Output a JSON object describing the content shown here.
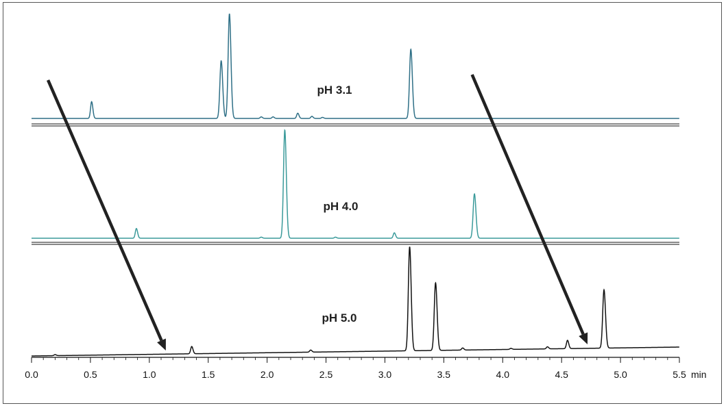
{
  "chart_data": {
    "type": "line",
    "title": "",
    "xlabel": "",
    "ylabel": "",
    "x_unit": "min",
    "xlim": [
      0.0,
      5.5
    ],
    "x_ticks": [
      "0.0",
      "0.5",
      "1.0",
      "1.5",
      "2.0",
      "2.5",
      "3.0",
      "3.5",
      "4.0",
      "4.5",
      "5.0",
      "5.5"
    ],
    "series": [
      {
        "name": "pH 3.1",
        "color": "#2e6f86",
        "peaks": [
          {
            "rt": 0.51,
            "height": 0.16
          },
          {
            "rt": 1.61,
            "height": 0.55
          },
          {
            "rt": 1.68,
            "height": 1.0
          },
          {
            "rt": 1.95,
            "height": 0.015
          },
          {
            "rt": 2.05,
            "height": 0.015
          },
          {
            "rt": 2.26,
            "height": 0.05
          },
          {
            "rt": 2.38,
            "height": 0.02
          },
          {
            "rt": 2.47,
            "height": 0.01
          },
          {
            "rt": 3.22,
            "height": 0.66
          }
        ]
      },
      {
        "name": "pH 4.0",
        "color": "#3a9a9a",
        "peaks": [
          {
            "rt": 0.89,
            "height": 0.09
          },
          {
            "rt": 1.95,
            "height": 0.01
          },
          {
            "rt": 2.15,
            "height": 1.0
          },
          {
            "rt": 2.58,
            "height": 0.01
          },
          {
            "rt": 3.08,
            "height": 0.05
          },
          {
            "rt": 3.76,
            "height": 0.41
          }
        ]
      },
      {
        "name": "pH 5.0",
        "color": "#111111",
        "peaks": [
          {
            "rt": 0.2,
            "height": 0.01
          },
          {
            "rt": 1.36,
            "height": 0.07
          },
          {
            "rt": 2.37,
            "height": 0.02
          },
          {
            "rt": 3.21,
            "height": 1.0
          },
          {
            "rt": 3.43,
            "height": 0.65
          },
          {
            "rt": 3.66,
            "height": 0.02
          },
          {
            "rt": 4.07,
            "height": 0.01
          },
          {
            "rt": 4.38,
            "height": 0.02
          },
          {
            "rt": 4.55,
            "height": 0.08
          },
          {
            "rt": 4.86,
            "height": 0.56
          }
        ]
      }
    ],
    "arrows": [
      {
        "from": [
          0.14,
          "pH 3.1"
        ],
        "to": [
          1.14,
          "pH 5.0"
        ]
      },
      {
        "from": [
          3.74,
          "pH 3.1"
        ],
        "to": [
          4.72,
          "pH 5.0"
        ]
      }
    ],
    "grid": false,
    "legend": "inline"
  }
}
